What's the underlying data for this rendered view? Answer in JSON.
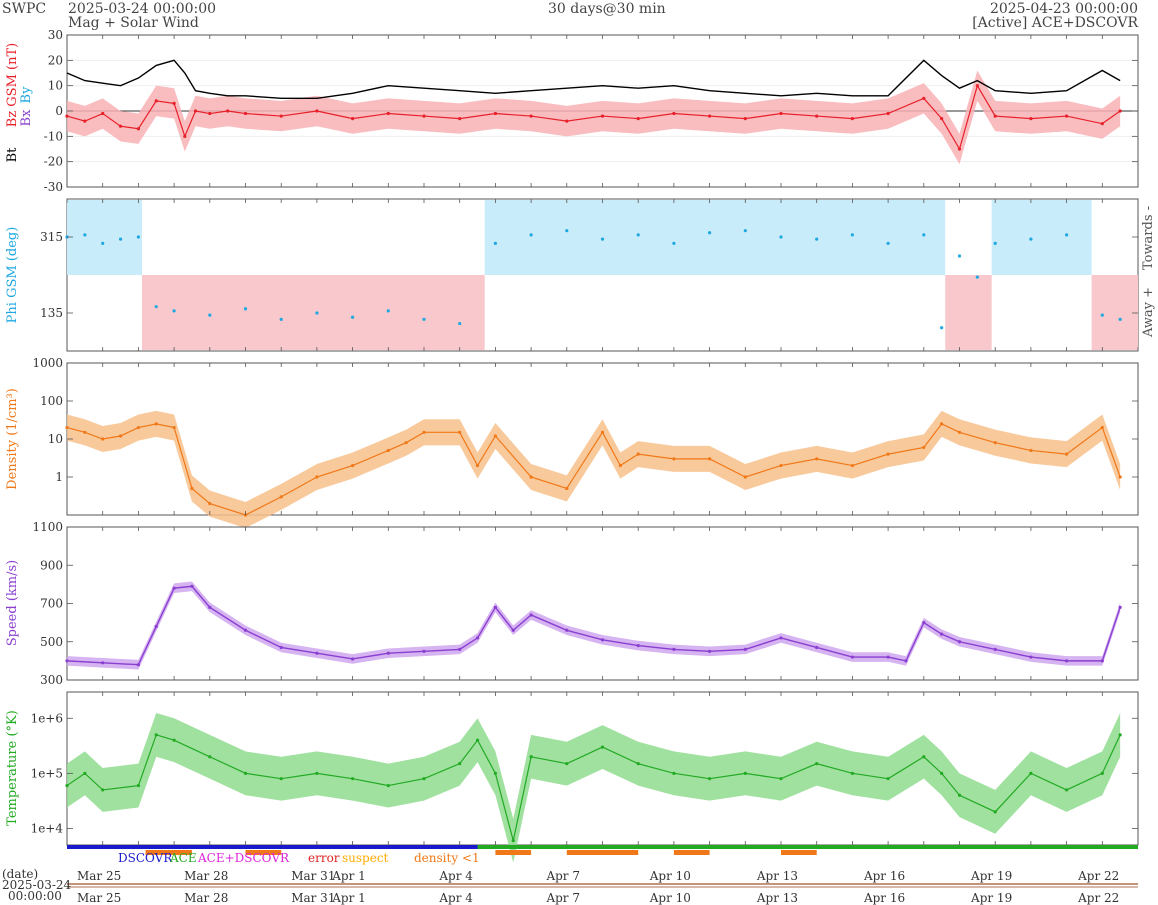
{
  "header": {
    "source": "SWPC",
    "subtitle": "Mag + Solar Wind",
    "start": "2025-03-24 00:00:00",
    "span": "30 days@30 min",
    "end": "2025-04-23 00:00:00",
    "active": "[Active] ACE+DSCOVR"
  },
  "date_label": "(date)",
  "date_value": "2025-03-24",
  "date_time": "00:00:00",
  "colors": {
    "bt": "#000000",
    "bz": "#e8202a",
    "bx": "#8844cc",
    "by": "#1fa8e0",
    "phi": "#1fa8e0",
    "towards": "#c8ecfa",
    "away": "#f8c8cc",
    "density": "#f07818",
    "density_fill": "#f7c08a",
    "speed": "#8a3fd0",
    "speed_fill": "#cfa6ee",
    "temp": "#22aa22",
    "temp_fill": "#8fdc8f"
  },
  "legend": [
    {
      "label": "DSCOVR",
      "color": "#1a1acc"
    },
    {
      "label": "ACE",
      "color": "#22aa22"
    },
    {
      "label": "ACE+DSCOVR",
      "color": "#dd22dd"
    },
    {
      "label": "error",
      "color": "#dd2222"
    },
    {
      "label": "suspect",
      "color": "#ffaa00"
    },
    {
      "label": "density <1",
      "color": "#f07818"
    }
  ],
  "x_ticks": [
    "Mar 25",
    "Mar 28",
    "Mar 31",
    "Apr 1",
    "Apr 4",
    "Apr 7",
    "Apr 10",
    "Apr 13",
    "Apr 16",
    "Apr 19",
    "Apr 22"
  ],
  "chart_data": [
    {
      "type": "line",
      "panel": "mag",
      "ylabel_parts": [
        "Bt",
        "Bz GSM (nT)",
        "Bx",
        "By"
      ],
      "yticks": [
        30,
        20,
        10,
        0,
        -10,
        -20,
        -30
      ],
      "ylim": [
        -30,
        30
      ],
      "x_unit": "days since 2025-03-24",
      "series": [
        {
          "name": "Bt",
          "x": [
            0,
            0.5,
            1,
            1.5,
            2,
            2.5,
            3,
            3.3,
            3.6,
            4,
            4.5,
            5,
            6,
            7,
            8,
            9,
            10,
            11,
            12,
            13,
            14,
            15,
            16,
            17,
            18,
            19,
            20,
            21,
            22,
            23,
            24,
            24.5,
            25,
            25.5,
            26,
            27,
            28,
            29,
            29.5
          ],
          "y": [
            15,
            12,
            11,
            10,
            13,
            18,
            20,
            15,
            8,
            7,
            6,
            6,
            5,
            5,
            7,
            10,
            9,
            8,
            7,
            8,
            9,
            10,
            9,
            10,
            8,
            7,
            6,
            7,
            6,
            6,
            20,
            14,
            9,
            12,
            8,
            7,
            8,
            16,
            12
          ]
        },
        {
          "name": "Bz",
          "x": [
            0,
            0.5,
            1,
            1.5,
            2,
            2.5,
            3,
            3.3,
            3.6,
            4,
            4.5,
            5,
            6,
            7,
            8,
            9,
            10,
            11,
            12,
            13,
            14,
            15,
            16,
            17,
            18,
            19,
            20,
            21,
            22,
            23,
            24,
            24.5,
            25,
            25.5,
            26,
            27,
            28,
            29,
            29.5
          ],
          "y": [
            -2,
            -4,
            -1,
            -6,
            -7,
            4,
            3,
            -10,
            0,
            -1,
            0,
            -1,
            -2,
            0,
            -3,
            -1,
            -2,
            -3,
            -1,
            -2,
            -4,
            -2,
            -3,
            -1,
            -2,
            -3,
            -1,
            -2,
            -3,
            -1,
            5,
            -3,
            -15,
            10,
            -2,
            -3,
            -2,
            -5,
            0
          ]
        }
      ]
    },
    {
      "type": "scatter",
      "panel": "phi",
      "ylabel": "Phi GSM (deg)",
      "yticks": [
        315,
        135
      ],
      "ylim": [
        45,
        405
      ],
      "side_labels": [
        "Towards -",
        "Away +"
      ],
      "towards_intervals": [
        [
          0,
          2.1
        ],
        [
          11.7,
          24.6
        ],
        [
          25.9,
          28.7
        ]
      ],
      "away_intervals": [
        [
          2.1,
          11.7
        ],
        [
          24.6,
          25.9
        ],
        [
          28.7,
          30
        ]
      ],
      "x": [
        0,
        0.5,
        1,
        1.5,
        2,
        2.5,
        3,
        4,
        5,
        6,
        7,
        8,
        9,
        10,
        11,
        12,
        13,
        14,
        15,
        16,
        17,
        18,
        19,
        20,
        21,
        22,
        23,
        24,
        24.5,
        25,
        25.5,
        26,
        27,
        28,
        29,
        29.5
      ],
      "y": [
        315,
        320,
        300,
        310,
        315,
        150,
        140,
        130,
        145,
        120,
        135,
        125,
        140,
        120,
        110,
        300,
        320,
        330,
        310,
        320,
        300,
        325,
        330,
        315,
        310,
        320,
        300,
        320,
        100,
        270,
        220,
        300,
        310,
        320,
        130,
        120
      ]
    },
    {
      "type": "line",
      "panel": "density",
      "ylabel": "Density (1/cm³)",
      "scale": "log",
      "yticks": [
        1000,
        100,
        10,
        1
      ],
      "ylim": [
        0.1,
        1000
      ],
      "x": [
        0,
        0.5,
        1,
        1.5,
        2,
        2.5,
        3,
        3.5,
        4,
        5,
        6,
        7,
        8,
        9,
        9.5,
        10,
        11,
        11.5,
        12,
        13,
        14,
        15,
        15.5,
        16,
        17,
        18,
        19,
        20,
        21,
        22,
        23,
        24,
        24.5,
        25,
        26,
        27,
        28,
        29,
        29.5
      ],
      "y": [
        20,
        15,
        10,
        12,
        20,
        25,
        20,
        0.5,
        0.2,
        0.1,
        0.3,
        1,
        2,
        5,
        8,
        15,
        15,
        2,
        12,
        1,
        0.5,
        15,
        2,
        4,
        3,
        3,
        1,
        2,
        3,
        2,
        4,
        6,
        25,
        15,
        8,
        5,
        4,
        20,
        1
      ]
    },
    {
      "type": "line",
      "panel": "speed",
      "ylabel": "Speed (km/s)",
      "yticks": [
        1100,
        900,
        700,
        500,
        300
      ],
      "ylim": [
        300,
        1100
      ],
      "x": [
        0,
        1,
        2,
        2.5,
        3,
        3.5,
        4,
        5,
        6,
        7,
        8,
        9,
        10,
        11,
        11.5,
        12,
        12.5,
        13,
        14,
        15,
        16,
        17,
        18,
        19,
        20,
        21,
        22,
        23,
        23.5,
        24,
        24.5,
        25,
        26,
        27,
        28,
        29,
        29.5
      ],
      "y": [
        400,
        390,
        380,
        580,
        780,
        790,
        680,
        560,
        470,
        440,
        410,
        440,
        450,
        460,
        520,
        680,
        560,
        640,
        560,
        510,
        480,
        460,
        450,
        460,
        520,
        470,
        420,
        420,
        400,
        600,
        540,
        500,
        460,
        420,
        400,
        400,
        680
      ]
    },
    {
      "type": "line",
      "panel": "temperature",
      "ylabel": "Temperature (°K)",
      "scale": "log",
      "yticks": [
        "1e+6",
        "1e+5",
        "1e+4"
      ],
      "ylim": [
        5000,
        3000000
      ],
      "x": [
        0,
        0.5,
        1,
        2,
        2.5,
        3,
        4,
        5,
        6,
        7,
        8,
        9,
        10,
        11,
        11.5,
        12,
        12.5,
        13,
        14,
        15,
        16,
        17,
        18,
        19,
        20,
        21,
        22,
        23,
        24,
        24.5,
        25,
        26,
        27,
        28,
        29,
        29.5
      ],
      "y": [
        60000,
        100000,
        50000,
        60000,
        500000,
        400000,
        200000,
        100000,
        80000,
        100000,
        80000,
        60000,
        80000,
        150000,
        400000,
        100000,
        6000,
        200000,
        150000,
        300000,
        150000,
        100000,
        80000,
        100000,
        80000,
        150000,
        100000,
        80000,
        200000,
        100000,
        40000,
        20000,
        100000,
        50000,
        100000,
        500000
      ]
    }
  ]
}
